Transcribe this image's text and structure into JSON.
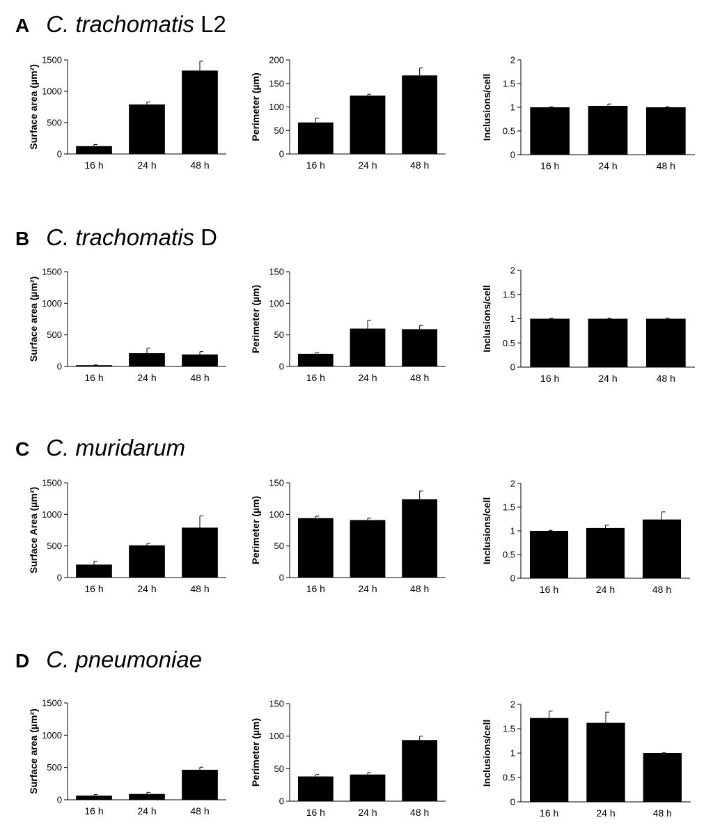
{
  "panels": [
    {
      "letter": "A",
      "genus": "C. trachomatis",
      "strain": " L2"
    },
    {
      "letter": "B",
      "genus": "C. trachomatis",
      "strain": " D"
    },
    {
      "letter": "C",
      "genus": "C. muridarum",
      "strain": ""
    },
    {
      "letter": "D",
      "genus": "C. pneumoniae",
      "strain": ""
    }
  ],
  "chart_data": [
    {
      "panel": "A",
      "type": "bar",
      "title": "",
      "xlabel": "",
      "ylabel": "Surface area (µm²)",
      "categories": [
        "16 h",
        "24 h",
        "48 h"
      ],
      "values": [
        125,
        790,
        1330
      ],
      "errors": [
        25,
        40,
        150
      ],
      "ylim": [
        0,
        1500
      ],
      "yticks": [
        0,
        500,
        1000,
        1500
      ],
      "ytick_labels": [
        "0",
        "500",
        "1000",
        "1500"
      ]
    },
    {
      "panel": "A",
      "type": "bar",
      "title": "",
      "xlabel": "",
      "ylabel": "Perimeter (µm)",
      "categories": [
        "16 h",
        "24 h",
        "48 h"
      ],
      "values": [
        67,
        124,
        167
      ],
      "errors": [
        9,
        3,
        16
      ],
      "ylim": [
        0,
        200
      ],
      "yticks": [
        0,
        50,
        100,
        150,
        200
      ],
      "ytick_labels": [
        "0",
        "50",
        "100",
        "150",
        "200"
      ]
    },
    {
      "panel": "A",
      "type": "bar",
      "title": "",
      "xlabel": "",
      "ylabel": "Inclusions/cell",
      "categories": [
        "16 h",
        "24 h",
        "48 h"
      ],
      "values": [
        1.0,
        1.03,
        1.0
      ],
      "errors": [
        0.01,
        0.04,
        0.01
      ],
      "ylim": [
        0,
        2
      ],
      "yticks": [
        0,
        0.5,
        1,
        1.5,
        2
      ],
      "ytick_labels": [
        "0",
        "0.5",
        "1",
        "1.5",
        "2"
      ]
    },
    {
      "panel": "B",
      "type": "bar",
      "title": "",
      "xlabel": "",
      "ylabel": "Surface area (µm²)",
      "categories": [
        "16 h",
        "24 h",
        "48 h"
      ],
      "values": [
        20,
        210,
        190
      ],
      "errors": [
        5,
        80,
        45
      ],
      "ylim": [
        0,
        1500
      ],
      "yticks": [
        0,
        500,
        1000,
        1500
      ],
      "ytick_labels": [
        "0",
        "500",
        "1000",
        "1500"
      ]
    },
    {
      "panel": "B",
      "type": "bar",
      "title": "",
      "xlabel": "",
      "ylabel": "Perimeter (µm)",
      "categories": [
        "16 h",
        "24 h",
        "48 h"
      ],
      "values": [
        20,
        60,
        59
      ],
      "errors": [
        2,
        13,
        6
      ],
      "ylim": [
        0,
        150
      ],
      "yticks": [
        0,
        50,
        100,
        150
      ],
      "ytick_labels": [
        "0",
        "50",
        "100",
        "150"
      ]
    },
    {
      "panel": "B",
      "type": "bar",
      "title": "",
      "xlabel": "",
      "ylabel": "Inclusions/cell",
      "categories": [
        "16 h",
        "24 h",
        "48 h"
      ],
      "values": [
        1.0,
        1.0,
        1.0
      ],
      "errors": [
        0.01,
        0.01,
        0.01
      ],
      "ylim": [
        0,
        2
      ],
      "yticks": [
        0,
        0.5,
        1,
        1.5,
        2
      ],
      "ytick_labels": [
        "0",
        "0.5",
        "1",
        "1.5",
        "2"
      ]
    },
    {
      "panel": "C",
      "type": "bar",
      "title": "",
      "xlabel": "",
      "ylabel": "Surface Area (µm²)",
      "categories": [
        "16 h",
        "24 h",
        "48 h"
      ],
      "values": [
        205,
        510,
        790
      ],
      "errors": [
        55,
        30,
        185
      ],
      "ylim": [
        0,
        1500
      ],
      "yticks": [
        0,
        500,
        1000,
        1500
      ],
      "ytick_labels": [
        "0",
        "500",
        "1000",
        "1500"
      ]
    },
    {
      "panel": "C",
      "type": "bar",
      "title": "",
      "xlabel": "",
      "ylabel": "Perimeter (µm)",
      "categories": [
        "16 h",
        "24 h",
        "48 h"
      ],
      "values": [
        94,
        91,
        124
      ],
      "errors": [
        3,
        3,
        13
      ],
      "ylim": [
        0,
        150
      ],
      "yticks": [
        0,
        50,
        100,
        150
      ],
      "ytick_labels": [
        "0",
        "50",
        "100",
        "150"
      ]
    },
    {
      "panel": "C",
      "type": "bar",
      "title": "",
      "xlabel": "",
      "ylabel": "Inclusions/cell",
      "categories": [
        "16 h",
        "24 h",
        "48 h"
      ],
      "values": [
        1.0,
        1.06,
        1.24
      ],
      "errors": [
        0.01,
        0.06,
        0.16
      ],
      "ylim": [
        0,
        2
      ],
      "yticks": [
        0,
        0.5,
        1,
        1.5,
        2
      ],
      "ytick_labels": [
        "0",
        "0.5",
        "1",
        "1.5",
        "2"
      ]
    },
    {
      "panel": "D",
      "type": "bar",
      "title": "",
      "xlabel": "",
      "ylabel": "Surface area (µm²)",
      "categories": [
        "16 h",
        "24 h",
        "48 h"
      ],
      "values": [
        65,
        90,
        465
      ],
      "errors": [
        15,
        25,
        40
      ],
      "ylim": [
        0,
        1500
      ],
      "yticks": [
        0,
        500,
        1000,
        1500
      ],
      "ytick_labels": [
        "0",
        "500",
        "1000",
        "1500"
      ]
    },
    {
      "panel": "D",
      "type": "bar",
      "title": "",
      "xlabel": "",
      "ylabel": "Perimeter (µm)",
      "categories": [
        "16 h",
        "24 h",
        "48 h"
      ],
      "values": [
        38,
        41,
        94
      ],
      "errors": [
        3,
        3,
        6
      ],
      "ylim": [
        0,
        150
      ],
      "yticks": [
        0,
        50,
        100,
        150
      ],
      "ytick_labels": [
        "0",
        "50",
        "100",
        "150"
      ]
    },
    {
      "panel": "D",
      "type": "bar",
      "title": "",
      "xlabel": "",
      "ylabel": "Inclusions/cell",
      "categories": [
        "16 h",
        "24 h",
        "48 h"
      ],
      "values": [
        1.72,
        1.62,
        1.0
      ],
      "errors": [
        0.14,
        0.22,
        0.01
      ],
      "ylim": [
        0,
        2
      ],
      "yticks": [
        0,
        0.5,
        1,
        1.5,
        2
      ],
      "ytick_labels": [
        "0",
        "0.5",
        "1",
        "1.5",
        "2"
      ]
    }
  ]
}
